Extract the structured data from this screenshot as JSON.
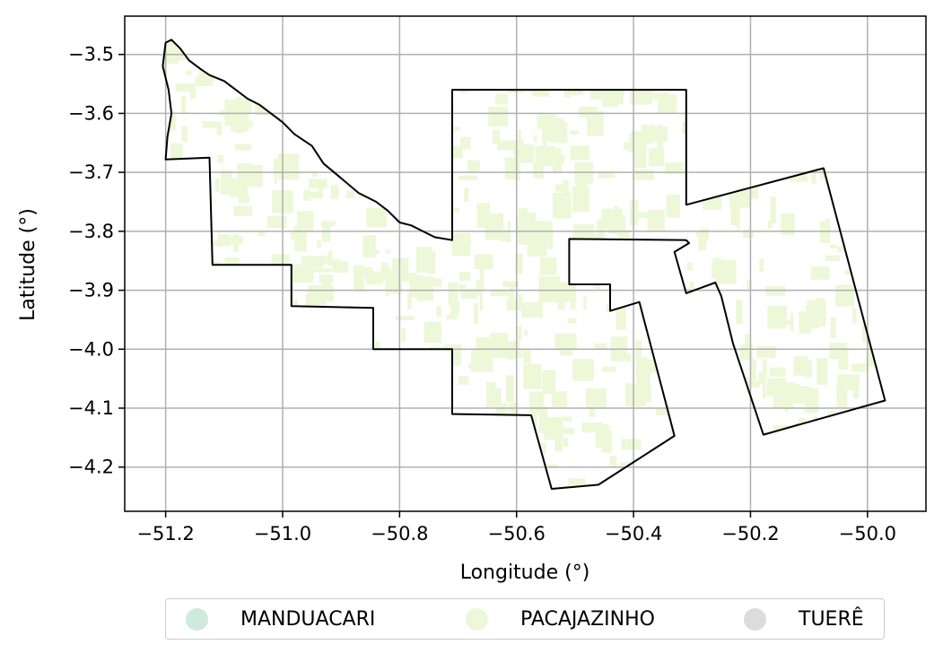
{
  "chart_data": {
    "type": "map",
    "xlabel": "Longitude (°)",
    "ylabel": "Latitude (°)",
    "xlim": [
      -51.27,
      -49.9
    ],
    "ylim": [
      -4.275,
      -3.435
    ],
    "xticks": [
      -51.2,
      -51.0,
      -50.8,
      -50.6,
      -50.4,
      -50.2,
      -50.0
    ],
    "xtick_labels": [
      "−51.2",
      "−51.0",
      "−50.8",
      "−50.6",
      "−50.4",
      "−50.2",
      "−50.0"
    ],
    "yticks": [
      -3.5,
      -3.6,
      -3.7,
      -3.8,
      -3.9,
      -4.0,
      -4.1,
      -4.2
    ],
    "ytick_labels": [
      "−3.5",
      "−3.6",
      "−3.7",
      "−3.8",
      "−3.9",
      "−4.0",
      "−4.1",
      "−4.2"
    ],
    "grid": true,
    "legend_position": "bottom-center",
    "legend": [
      {
        "label": "MANDUACARI",
        "color": "#cdeadc"
      },
      {
        "label": "PACAJAZINHO",
        "color": "#edf8d9"
      },
      {
        "label": "TUERÊ",
        "color": "#dcdcdc"
      }
    ],
    "fill_color": "#edf8d9",
    "boundary_color": "#000000",
    "boundaries": [
      [
        [
          -51.2,
          -3.48
        ],
        [
          -51.19,
          -3.475
        ],
        [
          -51.175,
          -3.49
        ],
        [
          -51.16,
          -3.51
        ],
        [
          -51.14,
          -3.525
        ],
        [
          -51.125,
          -3.535
        ],
        [
          -51.1,
          -3.545
        ],
        [
          -51.08,
          -3.56
        ],
        [
          -51.06,
          -3.575
        ],
        [
          -51.04,
          -3.585
        ],
        [
          -51.02,
          -3.6
        ],
        [
          -51.0,
          -3.615
        ],
        [
          -50.98,
          -3.635
        ],
        [
          -50.95,
          -3.655
        ],
        [
          -50.93,
          -3.685
        ],
        [
          -50.9,
          -3.71
        ],
        [
          -50.87,
          -3.735
        ],
        [
          -50.84,
          -3.75
        ],
        [
          -50.82,
          -3.765
        ],
        [
          -50.8,
          -3.785
        ],
        [
          -50.78,
          -3.79
        ],
        [
          -50.76,
          -3.8
        ],
        [
          -50.74,
          -3.81
        ],
        [
          -50.71,
          -3.815
        ],
        [
          -50.71,
          -3.56
        ],
        [
          -50.31,
          -3.56
        ],
        [
          -50.31,
          -3.755
        ],
        [
          -50.075,
          -3.693
        ],
        [
          -49.97,
          -4.087
        ],
        [
          -50.178,
          -4.145
        ],
        [
          -50.23,
          -3.99
        ],
        [
          -50.25,
          -3.91
        ],
        [
          -50.26,
          -3.887
        ],
        [
          -50.31,
          -3.905
        ],
        [
          -50.33,
          -3.835
        ],
        [
          -50.305,
          -3.82
        ],
        [
          -50.31,
          -3.815
        ],
        [
          -50.51,
          -3.813
        ],
        [
          -50.51,
          -3.89
        ],
        [
          -50.44,
          -3.89
        ],
        [
          -50.44,
          -3.935
        ],
        [
          -50.39,
          -3.92
        ],
        [
          -50.33,
          -4.147
        ],
        [
          -50.46,
          -4.23
        ],
        [
          -50.54,
          -4.237
        ],
        [
          -50.575,
          -4.112
        ],
        [
          -50.71,
          -4.11
        ],
        [
          -50.71,
          -4.0
        ],
        [
          -50.845,
          -4.0
        ],
        [
          -50.845,
          -3.93
        ],
        [
          -50.985,
          -3.927
        ],
        [
          -50.985,
          -3.857
        ],
        [
          -51.12,
          -3.857
        ],
        [
          -51.125,
          -3.675
        ],
        [
          -51.2,
          -3.678
        ],
        [
          -51.197,
          -3.64
        ],
        [
          -51.19,
          -3.6
        ],
        [
          -51.195,
          -3.56
        ],
        [
          -51.205,
          -3.52
        ],
        [
          -51.2,
          -3.48
        ]
      ]
    ],
    "grid_ticks_note": ""
  }
}
